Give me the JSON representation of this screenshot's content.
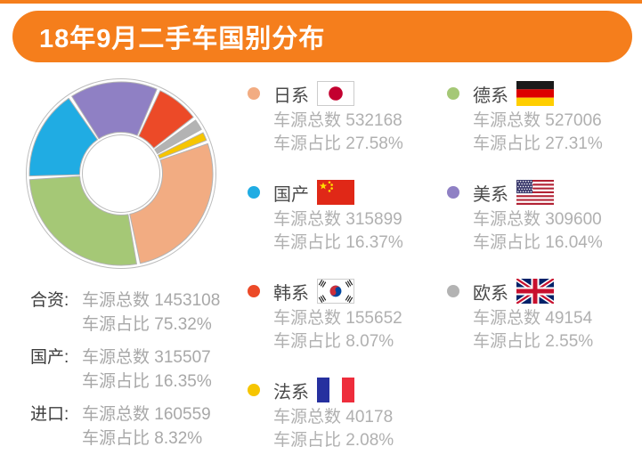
{
  "title": "18年9月二手车国别分布",
  "accent_color": "#F57E1C",
  "labels": {
    "count": "车源总数",
    "share": "车源占比"
  },
  "chart_data": {
    "type": "pie",
    "donut": true,
    "title": "18年9月二手车国别分布",
    "start_angle_deg": 69.8,
    "direction": "clockwise",
    "legend_position": "right",
    "categories": [
      "日系",
      "德系",
      "国产",
      "美系",
      "韩系",
      "欧系",
      "法系"
    ],
    "values": [
      27.58,
      27.31,
      16.37,
      16.04,
      8.07,
      2.55,
      2.08
    ],
    "counts": [
      532168,
      527006,
      315899,
      309600,
      155652,
      49154,
      40178
    ],
    "colors": [
      "#F2AC82",
      "#A5C876",
      "#20ACE3",
      "#8F80C4",
      "#EC4A28",
      "#B3B3B3",
      "#F6C500"
    ],
    "ring_outline_color": "#BDBDBD",
    "slice_outline_color": "#B3B3B3"
  },
  "legend": {
    "entries": [
      {
        "name": "日系",
        "flag": "japan",
        "count": "532168",
        "share": "27.58%"
      },
      {
        "name": "德系",
        "flag": "germany",
        "count": "527006",
        "share": "27.31%"
      },
      {
        "name": "国产",
        "flag": "china",
        "count": "315899",
        "share": "16.37%"
      },
      {
        "name": "美系",
        "flag": "usa",
        "count": "309600",
        "share": "16.04%"
      },
      {
        "name": "韩系",
        "flag": "south-korea",
        "count": "155652",
        "share": "8.07%"
      },
      {
        "name": "欧系",
        "flag": "uk",
        "count": "49154",
        "share": "2.55%"
      },
      {
        "name": "法系",
        "flag": "france",
        "count": "40178",
        "share": "2.08%"
      }
    ]
  },
  "summary": [
    {
      "label": "合资:",
      "count": "1453108",
      "share": "75.32%"
    },
    {
      "label": "国产:",
      "count": "315507",
      "share": "16.35%"
    },
    {
      "label": "进口:",
      "count": "160559",
      "share": "8.32%"
    }
  ]
}
